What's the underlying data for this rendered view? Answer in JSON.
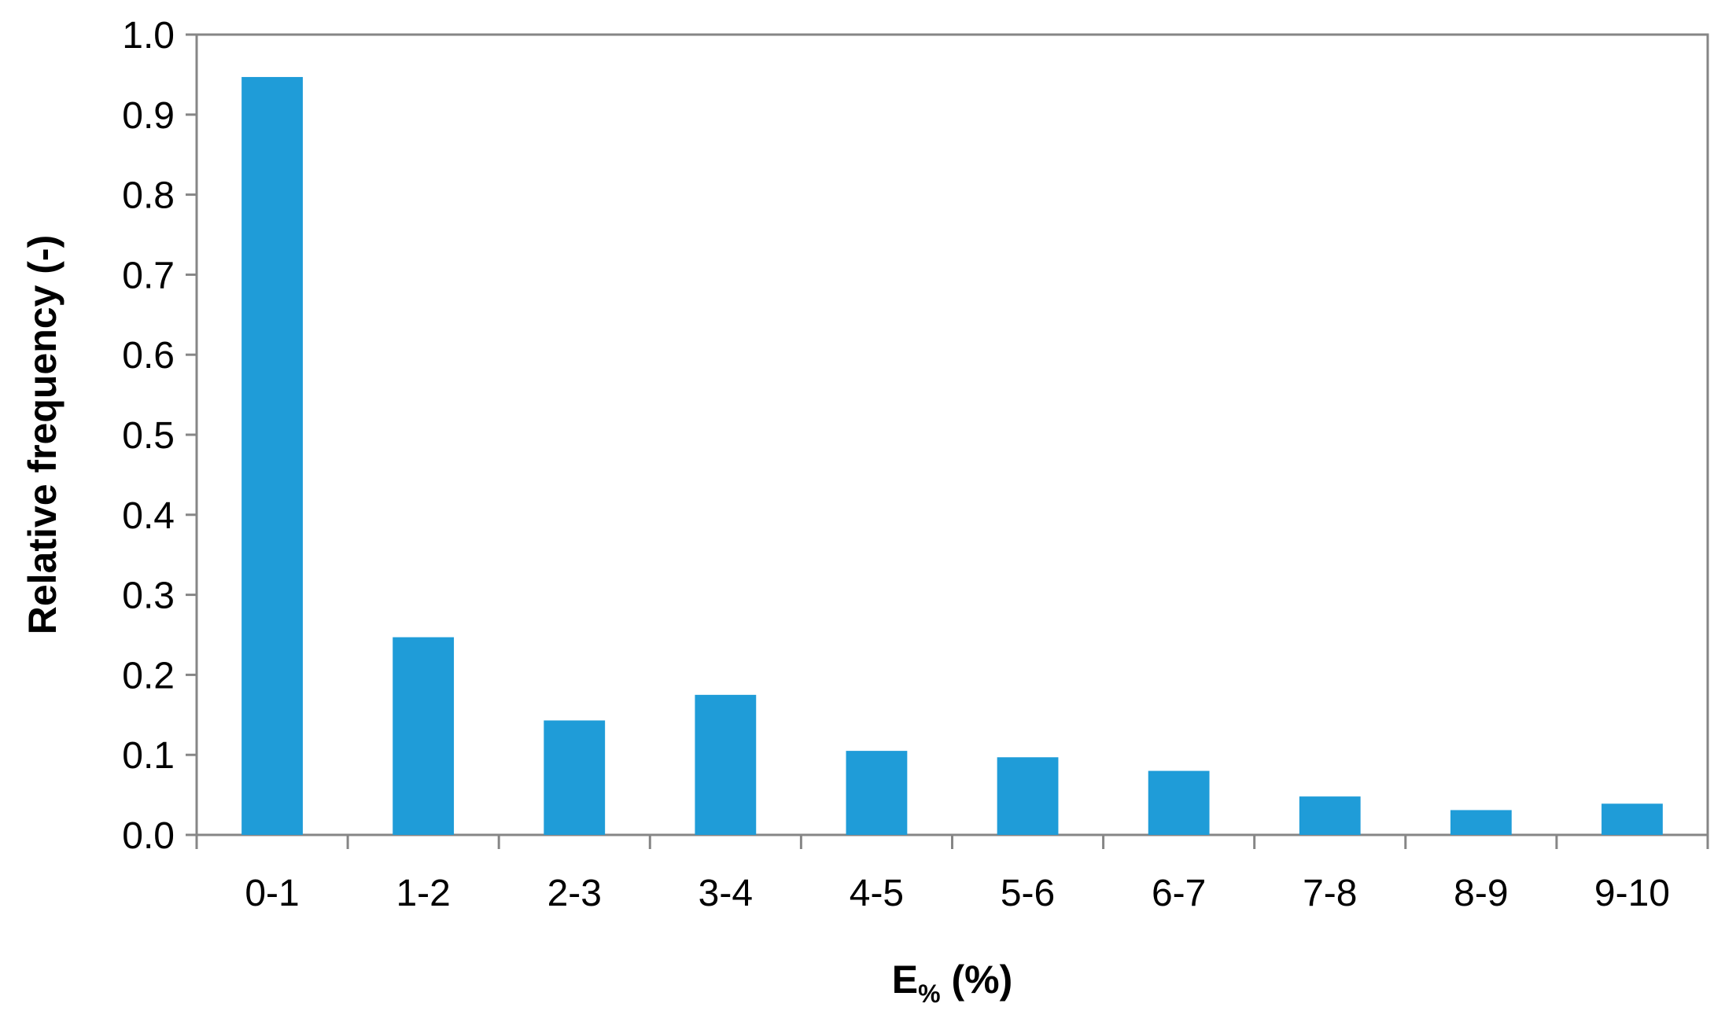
{
  "chart_data": {
    "type": "bar",
    "title": "",
    "xlabel_main": "E",
    "xlabel_sub": "%",
    "xlabel_rest": " (%)",
    "ylabel": "Relative frequency (-)",
    "categories": [
      "0-1",
      "1-2",
      "2-3",
      "3-4",
      "4-5",
      "5-6",
      "6-7",
      "7-8",
      "8-9",
      "9-10"
    ],
    "values": [
      0.947,
      0.247,
      0.143,
      0.175,
      0.105,
      0.097,
      0.08,
      0.048,
      0.031,
      0.039
    ],
    "ylim": [
      0,
      1.0
    ],
    "yticks": [
      "0.0",
      "0.1",
      "0.2",
      "0.3",
      "0.4",
      "0.5",
      "0.6",
      "0.7",
      "0.8",
      "0.9",
      "1.0"
    ],
    "grid": false,
    "legend": "none",
    "bar_color": "#1f9cd8",
    "axis_color": "#868686"
  }
}
